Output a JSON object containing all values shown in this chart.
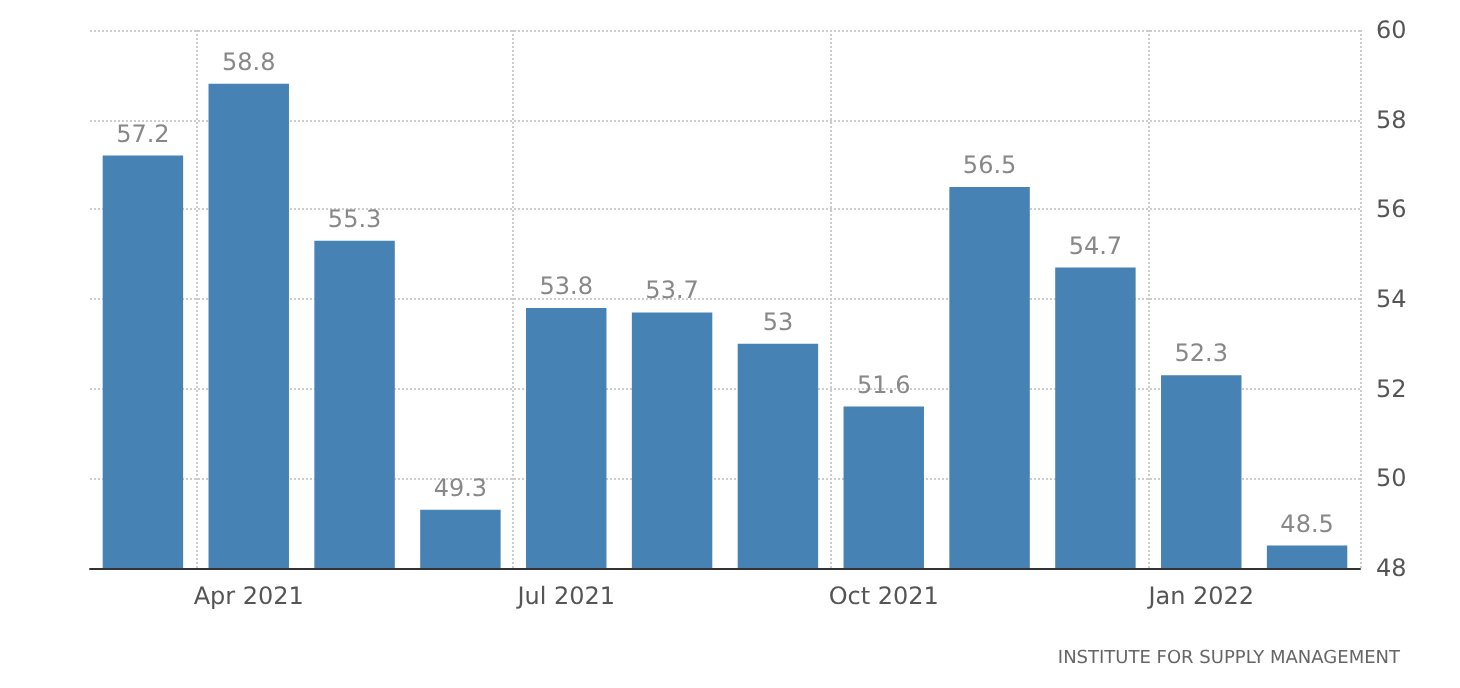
{
  "chart_data": {
    "type": "bar",
    "categories": [
      null,
      "Apr 2021",
      null,
      null,
      "Jul 2021",
      null,
      null,
      "Oct 2021",
      null,
      null,
      "Jan 2022",
      null
    ],
    "values": [
      57.2,
      58.8,
      55.3,
      49.3,
      53.8,
      53.7,
      53,
      51.6,
      56.5,
      54.7,
      52.3,
      48.5
    ],
    "color": "#4682b4",
    "ylim": [
      48,
      60
    ],
    "yticks": [
      48,
      50,
      52,
      54,
      56,
      58,
      60
    ],
    "grid": true,
    "data_labels": true,
    "annotations": [
      "INSTITUTE FOR SUPPLY MANAGEMENT"
    ]
  }
}
